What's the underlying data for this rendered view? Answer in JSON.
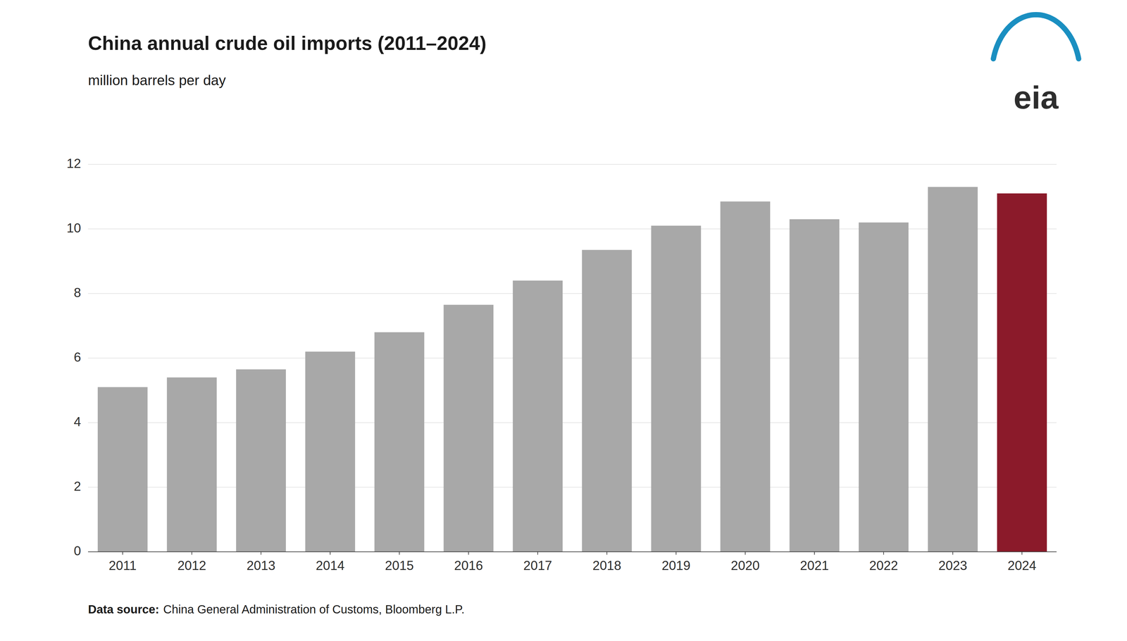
{
  "chart_data": {
    "type": "bar",
    "title": "China annual crude oil imports (2011–2024)",
    "subtitle": "million barrels per day",
    "categories": [
      "2011",
      "2012",
      "2013",
      "2014",
      "2015",
      "2016",
      "2017",
      "2018",
      "2019",
      "2020",
      "2021",
      "2022",
      "2023",
      "2024"
    ],
    "values": [
      5.1,
      5.4,
      5.65,
      6.2,
      6.8,
      7.65,
      8.4,
      9.35,
      10.1,
      10.85,
      10.3,
      10.2,
      11.3,
      11.1
    ],
    "colors": [
      "#a8a8a8",
      "#a8a8a8",
      "#a8a8a8",
      "#a8a8a8",
      "#a8a8a8",
      "#a8a8a8",
      "#a8a8a8",
      "#a8a8a8",
      "#a8a8a8",
      "#a8a8a8",
      "#a8a8a8",
      "#a8a8a8",
      "#a8a8a8",
      "#8b1a2a"
    ],
    "ylim": [
      0,
      12
    ],
    "yticks": [
      0,
      2,
      4,
      6,
      8,
      10,
      12
    ],
    "grid": true,
    "annotations": [
      "Data source:",
      "China General Administration of Customs, Bloomberg L.P.",
      "eia"
    ]
  }
}
